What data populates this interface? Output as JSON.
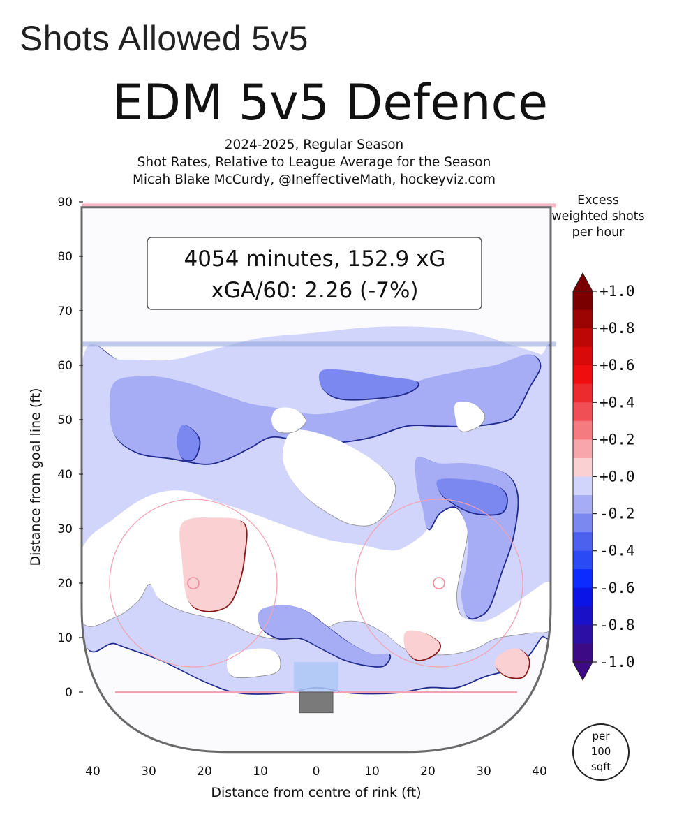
{
  "page_heading": "Shots Allowed 5v5",
  "chart_data": {
    "type": "heatmap",
    "title": "EDM 5v5 Defence",
    "subtitle": [
      "2024-2025, Regular Season",
      "Shot Rates, Relative to League Average for the Season",
      "Micah Blake McCurdy, @IneffectiveMath, hockeyviz.com"
    ],
    "xlabel": "Distance from centre of rink (ft)",
    "ylabel": "Distance from goal line (ft)",
    "xlim": [
      -42,
      42
    ],
    "ylim": [
      -11,
      90
    ],
    "xticks": [
      "40",
      "30",
      "20",
      "10",
      "0",
      "10",
      "20",
      "30",
      "40"
    ],
    "xtick_values": [
      -40,
      -30,
      -20,
      -10,
      0,
      10,
      20,
      30,
      40
    ],
    "yticks": [
      "90",
      "80",
      "70",
      "60",
      "50",
      "40",
      "30",
      "20",
      "10",
      "0"
    ],
    "ytick_values": [
      90,
      80,
      70,
      60,
      50,
      40,
      30,
      20,
      10,
      0
    ],
    "annotation": {
      "line1": "4054 minutes, 152.9 xG",
      "line2": "xGA/60: 2.26 (-7%)"
    },
    "colorbar": {
      "title_lines": [
        "Excess",
        "weighted shots",
        "per hour"
      ],
      "unit_lines": [
        "per",
        "100",
        "sqft"
      ],
      "levels": [
        -1.0,
        -0.9,
        -0.8,
        -0.7,
        -0.6,
        -0.5,
        -0.4,
        -0.3,
        -0.2,
        -0.1,
        0.0,
        0.1,
        0.2,
        0.3,
        0.4,
        0.5,
        0.6,
        0.7,
        0.8,
        0.9,
        1.0
      ],
      "colors": [
        "#3d0a85",
        "#2c10a6",
        "#1a10c8",
        "#0a14e6",
        "#0b2bff",
        "#2a4af5",
        "#4c62ef",
        "#7a88f0",
        "#a6adf5",
        "#d1d5fb",
        "#ffffff",
        "#fbd0d2",
        "#f7a7ab",
        "#f47b80",
        "#f04f55",
        "#ec2b2f",
        "#f00d0d",
        "#d80a0a",
        "#bd0606",
        "#9c0303",
        "#7a0000"
      ],
      "tick_labels": [
        "+1.0",
        "+0.8",
        "+0.6",
        "+0.4",
        "+0.2",
        "+0.0",
        "-0.2",
        "-0.4",
        "-0.6",
        "-0.8",
        "-1.0"
      ],
      "tick_values": [
        1.0,
        0.8,
        0.6,
        0.4,
        0.2,
        0.0,
        -0.2,
        -0.4,
        -0.6,
        -0.8,
        -1.0
      ]
    },
    "regions": [
      {
        "level": -0.1,
        "points": [
          [
            -42,
            60
          ],
          [
            -35,
            61
          ],
          [
            -26,
            61
          ],
          [
            -18,
            63
          ],
          [
            -10,
            65
          ],
          [
            0,
            66
          ],
          [
            10,
            67
          ],
          [
            20,
            67
          ],
          [
            28,
            66
          ],
          [
            34,
            64
          ],
          [
            40,
            62
          ],
          [
            42,
            60
          ],
          [
            42,
            15
          ],
          [
            40,
            10
          ],
          [
            36,
            5
          ],
          [
            30,
            3
          ],
          [
            25,
            1
          ],
          [
            20,
            1
          ],
          [
            14,
            0
          ],
          [
            6,
            0
          ],
          [
            0,
            1
          ],
          [
            -6,
            0
          ],
          [
            -14,
            0
          ],
          [
            -20,
            2
          ],
          [
            -28,
            6
          ],
          [
            -36,
            9
          ],
          [
            -42,
            12
          ]
        ]
      },
      {
        "level": 0.0,
        "points": [
          [
            -42,
            26
          ],
          [
            -36,
            32
          ],
          [
            -30,
            36
          ],
          [
            -24,
            37
          ],
          [
            -18,
            35
          ],
          [
            -12,
            33
          ],
          [
            -4,
            30
          ],
          [
            2,
            28
          ],
          [
            8,
            27
          ],
          [
            14,
            26
          ],
          [
            18,
            28
          ],
          [
            20,
            30
          ],
          [
            22,
            33
          ],
          [
            24,
            35
          ],
          [
            26,
            34
          ],
          [
            27,
            30
          ],
          [
            26,
            24
          ],
          [
            25,
            18
          ],
          [
            26,
            14
          ],
          [
            30,
            13
          ],
          [
            34,
            15
          ],
          [
            38,
            18
          ],
          [
            42,
            20
          ],
          [
            42,
            12
          ],
          [
            38,
            11
          ],
          [
            32,
            10
          ],
          [
            28,
            8
          ],
          [
            22,
            7
          ],
          [
            16,
            8
          ],
          [
            12,
            11
          ],
          [
            8,
            13
          ],
          [
            4,
            13
          ],
          [
            0,
            11
          ],
          [
            -4,
            10
          ],
          [
            -8,
            10
          ],
          [
            -12,
            11
          ],
          [
            -16,
            13
          ],
          [
            -20,
            14
          ],
          [
            -24,
            15
          ],
          [
            -28,
            17
          ],
          [
            -30,
            20
          ],
          [
            -32,
            17
          ],
          [
            -36,
            14
          ],
          [
            -42,
            13
          ]
        ]
      },
      {
        "level": -0.2,
        "points": [
          [
            -36,
            57
          ],
          [
            -30,
            58
          ],
          [
            -24,
            57
          ],
          [
            -18,
            55
          ],
          [
            -12,
            53
          ],
          [
            -6,
            52
          ],
          [
            0,
            51
          ],
          [
            6,
            52
          ],
          [
            12,
            54
          ],
          [
            18,
            57
          ],
          [
            26,
            59
          ],
          [
            32,
            60
          ],
          [
            38,
            62
          ],
          [
            40,
            60
          ],
          [
            38,
            56
          ],
          [
            36,
            52
          ],
          [
            34,
            50
          ],
          [
            28,
            49
          ],
          [
            22,
            49
          ],
          [
            16,
            49
          ],
          [
            10,
            47
          ],
          [
            4,
            46
          ],
          [
            -2,
            46
          ],
          [
            -8,
            47
          ],
          [
            -12,
            45
          ],
          [
            -16,
            43
          ],
          [
            -20,
            42
          ],
          [
            -26,
            43
          ],
          [
            -32,
            44
          ],
          [
            -36,
            47
          ],
          [
            -37,
            52
          ]
        ]
      },
      {
        "level": -0.2,
        "points": [
          [
            18,
            43
          ],
          [
            22,
            42
          ],
          [
            27,
            42
          ],
          [
            32,
            41
          ],
          [
            35,
            39
          ],
          [
            36,
            35
          ],
          [
            35,
            28
          ],
          [
            33,
            22
          ],
          [
            31,
            16
          ],
          [
            29,
            14
          ],
          [
            27,
            14
          ],
          [
            26,
            18
          ],
          [
            27,
            24
          ],
          [
            27,
            30
          ],
          [
            25,
            34
          ],
          [
            22,
            33
          ],
          [
            20,
            30
          ],
          [
            19,
            34
          ],
          [
            18,
            38
          ]
        ]
      },
      {
        "level": -0.2,
        "points": [
          [
            -10,
            15
          ],
          [
            -6,
            16
          ],
          [
            -2,
            15
          ],
          [
            2,
            12
          ],
          [
            6,
            9
          ],
          [
            10,
            7
          ],
          [
            13,
            7
          ],
          [
            12,
            5
          ],
          [
            9,
            5
          ],
          [
            5,
            6
          ],
          [
            1,
            8
          ],
          [
            -3,
            10
          ],
          [
            -7,
            10
          ],
          [
            -10,
            12
          ]
        ]
      },
      {
        "level": 0.0,
        "points": [
          [
            -4,
            48
          ],
          [
            2,
            47
          ],
          [
            8,
            44
          ],
          [
            12,
            41
          ],
          [
            14,
            38
          ],
          [
            13,
            34
          ],
          [
            10,
            31
          ],
          [
            6,
            31
          ],
          [
            2,
            33
          ],
          [
            -2,
            36
          ],
          [
            -5,
            40
          ],
          [
            -6,
            44
          ]
        ]
      },
      {
        "level": 0.0,
        "points": [
          [
            -7,
            52
          ],
          [
            -4,
            52
          ],
          [
            -2,
            50
          ],
          [
            -4,
            48
          ],
          [
            -7,
            48
          ],
          [
            -8,
            50
          ]
        ]
      },
      {
        "level": 0.0,
        "points": [
          [
            25,
            53
          ],
          [
            28,
            53
          ],
          [
            30,
            51
          ],
          [
            29,
            49
          ],
          [
            26,
            48
          ],
          [
            25,
            50
          ]
        ]
      },
      {
        "level": 0.0,
        "points": [
          [
            -15,
            7
          ],
          [
            -10,
            8
          ],
          [
            -7,
            7
          ],
          [
            -7,
            4
          ],
          [
            -11,
            3
          ],
          [
            -15,
            3
          ],
          [
            -16,
            5
          ]
        ]
      },
      {
        "level": -0.3,
        "points": [
          [
            1,
            59
          ],
          [
            6,
            59
          ],
          [
            12,
            58
          ],
          [
            18,
            57
          ],
          [
            16,
            55
          ],
          [
            10,
            54
          ],
          [
            4,
            54
          ],
          [
            1,
            56
          ]
        ]
      },
      {
        "level": -0.3,
        "points": [
          [
            22,
            39
          ],
          [
            27,
            39
          ],
          [
            32,
            38
          ],
          [
            34,
            36
          ],
          [
            33,
            33
          ],
          [
            28,
            33
          ],
          [
            24,
            35
          ],
          [
            22,
            37
          ]
        ]
      },
      {
        "level": -0.3,
        "points": [
          [
            -24,
            49
          ],
          [
            -22,
            48
          ],
          [
            -21,
            46
          ],
          [
            -22,
            43
          ],
          [
            -24,
            43
          ],
          [
            -25,
            46
          ]
        ]
      },
      {
        "level": 0.1,
        "points": [
          [
            -24,
            31
          ],
          [
            -18,
            32
          ],
          [
            -13,
            31
          ],
          [
            -13,
            25
          ],
          [
            -14,
            20
          ],
          [
            -16,
            16
          ],
          [
            -20,
            15
          ],
          [
            -23,
            17
          ],
          [
            -24,
            24
          ]
        ]
      },
      {
        "level": 0.1,
        "points": [
          [
            16,
            11
          ],
          [
            19,
            11
          ],
          [
            22,
            9
          ],
          [
            21,
            7
          ],
          [
            18,
            6
          ],
          [
            16,
            8
          ]
        ]
      },
      {
        "level": 0.1,
        "points": [
          [
            33,
            7
          ],
          [
            36,
            8
          ],
          [
            38,
            6
          ],
          [
            37,
            3
          ],
          [
            34,
            3
          ],
          [
            32,
            5
          ]
        ]
      }
    ]
  }
}
